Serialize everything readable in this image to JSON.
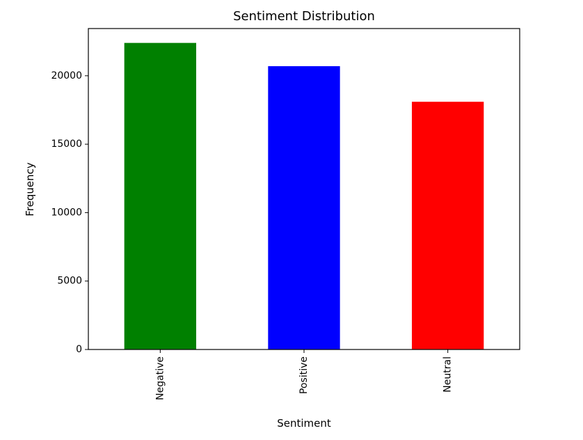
{
  "chart_data": {
    "type": "bar",
    "title": "Sentiment Distribution",
    "xlabel": "Sentiment",
    "ylabel": "Frequency",
    "categories": [
      "Negative",
      "Positive",
      "Neutral"
    ],
    "values": [
      22400,
      20700,
      18100
    ],
    "colors": [
      "#008000",
      "#0000ff",
      "#ff0000"
    ],
    "ylim": [
      0,
      23450
    ],
    "yticks": [
      0,
      5000,
      10000,
      15000,
      20000
    ],
    "grid": false,
    "xtick_rotation": "vertical"
  }
}
